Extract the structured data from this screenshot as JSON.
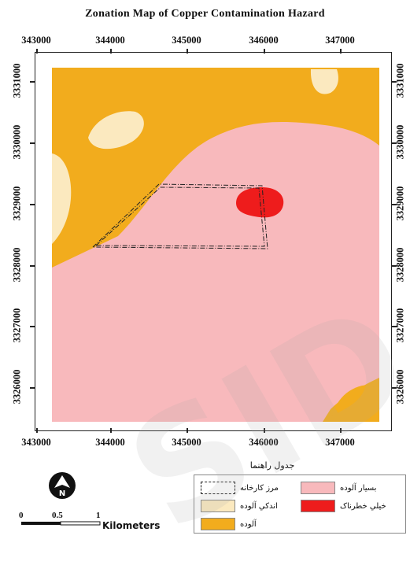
{
  "title": "Zonation Map of Copper  Contamination Hazard",
  "x_ticks": [
    "343000",
    "344000",
    "345000",
    "346000",
    "347000"
  ],
  "y_ticks": [
    "3331000",
    "3330000",
    "3329000",
    "3328000",
    "3327000",
    "3326000"
  ],
  "y_ticks_right": [
    "3331000",
    "3330000",
    "3329000",
    "3328000",
    "3327000",
    "3326000"
  ],
  "legend": {
    "title": "جدول راهنما",
    "items": [
      {
        "label": "بسيار آلوده",
        "color": "#f8b9bc"
      },
      {
        "label": "مرز کارخانه",
        "color": "#ffffff"
      },
      {
        "label": "خيلي خطرناک",
        "color": "#ee1c1c"
      },
      {
        "label": "اندکي آلوده",
        "color": "#fbe9bf"
      },
      {
        "label": "آلوده",
        "color": "#f2ac1d"
      }
    ]
  },
  "scale": {
    "labels": [
      "0",
      "0.5",
      "1"
    ],
    "unit": "Kilometers"
  },
  "north_arrow": "N",
  "watermark": "SID",
  "colors": {
    "very_polluted": "#f8b9bc",
    "polluted": "#f2ac1d",
    "slightly_polluted": "#fbe9bf",
    "very_dangerous": "#ee1c1c"
  }
}
